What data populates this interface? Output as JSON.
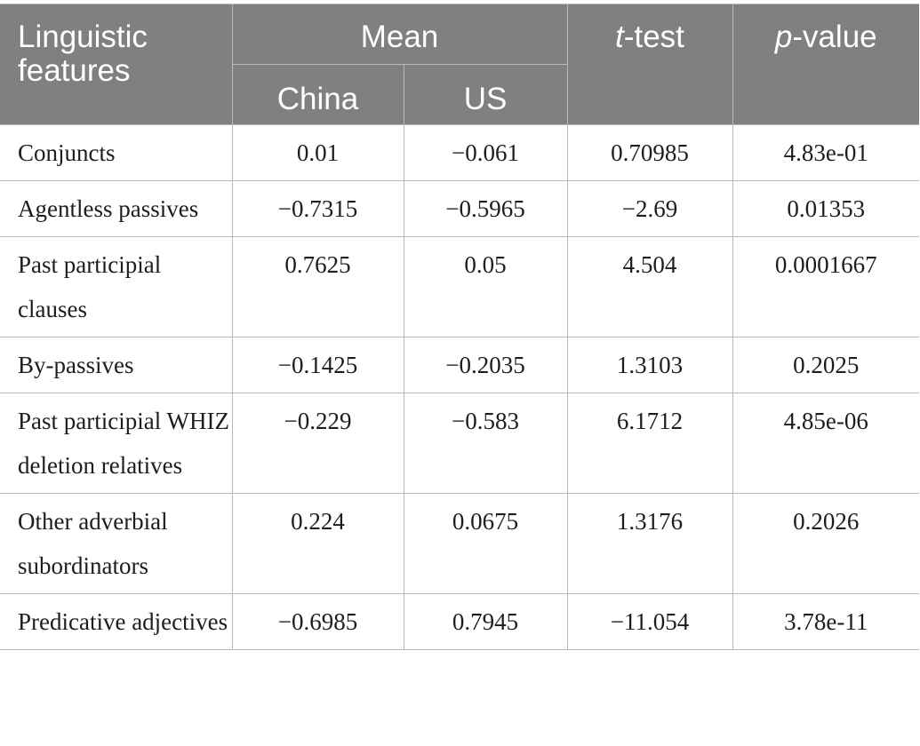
{
  "header": {
    "linguistic_features": "Linguistic features",
    "mean": "Mean",
    "china": "China",
    "us": "US",
    "t_test_italic": "t",
    "t_test_rest": "-test",
    "p_value_italic": "p",
    "p_value_rest": "-value"
  },
  "rows": [
    {
      "feature": "Conjuncts",
      "china": "0.01",
      "us": "−0.061",
      "t": "0.70985",
      "p": "4.83e-01"
    },
    {
      "feature": "Agentless passives",
      "china": "−0.7315",
      "us": "−0.5965",
      "t": "−2.69",
      "p": "0.01353"
    },
    {
      "feature": "Past participial clauses",
      "china": "0.7625",
      "us": "0.05",
      "t": "4.504",
      "p": "0.0001667"
    },
    {
      "feature": "By-passives",
      "china": "−0.1425",
      "us": "−0.2035",
      "t": "1.3103",
      "p": "0.2025"
    },
    {
      "feature": "Past participial WHIZ deletion relatives",
      "china": "−0.229",
      "us": "−0.583",
      "t": "6.1712",
      "p": "4.85e-06"
    },
    {
      "feature": "Other adverbial subordinators",
      "china": "0.224",
      "us": "0.0675",
      "t": "1.3176",
      "p": "0.2026"
    },
    {
      "feature": "Predicative adjectives",
      "china": "−0.6985",
      "us": "0.7945",
      "t": "−11.054",
      "p": "3.78e-11"
    }
  ]
}
